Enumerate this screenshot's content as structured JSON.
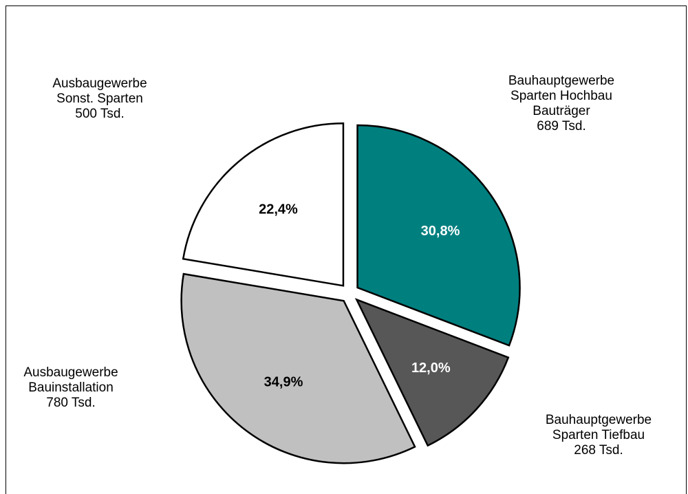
{
  "chart_data": {
    "type": "pie",
    "unit": "Tsd.",
    "slices": [
      {
        "id": "hochbau",
        "label_lines": [
          "Bauhauptgewerbe",
          "Sparten Hochbau",
          "Bauträger",
          "689 Tsd."
        ],
        "value": 689,
        "percent_label": "30,8%",
        "color": "#007f7f",
        "text_color": "#ffffff"
      },
      {
        "id": "tiefbau",
        "label_lines": [
          "Bauhauptgewerbe",
          "Sparten Tiefbau",
          "268 Tsd."
        ],
        "value": 268,
        "percent_label": "12,0%",
        "color": "#575757",
        "text_color": "#ffffff"
      },
      {
        "id": "bauinstallation",
        "label_lines": [
          "Ausbaugewerbe",
          "Bauinstallation",
          "780 Tsd."
        ],
        "value": 780,
        "percent_label": "34,9%",
        "color": "#c0c0c0",
        "text_color": "#000000"
      },
      {
        "id": "sonst",
        "label_lines": [
          "Ausbaugewerbe",
          "Sonst. Sparten",
          "500 Tsd."
        ],
        "value": 500,
        "percent_label": "22,4%",
        "color": "#ffffff",
        "text_color": "#000000"
      }
    ]
  }
}
